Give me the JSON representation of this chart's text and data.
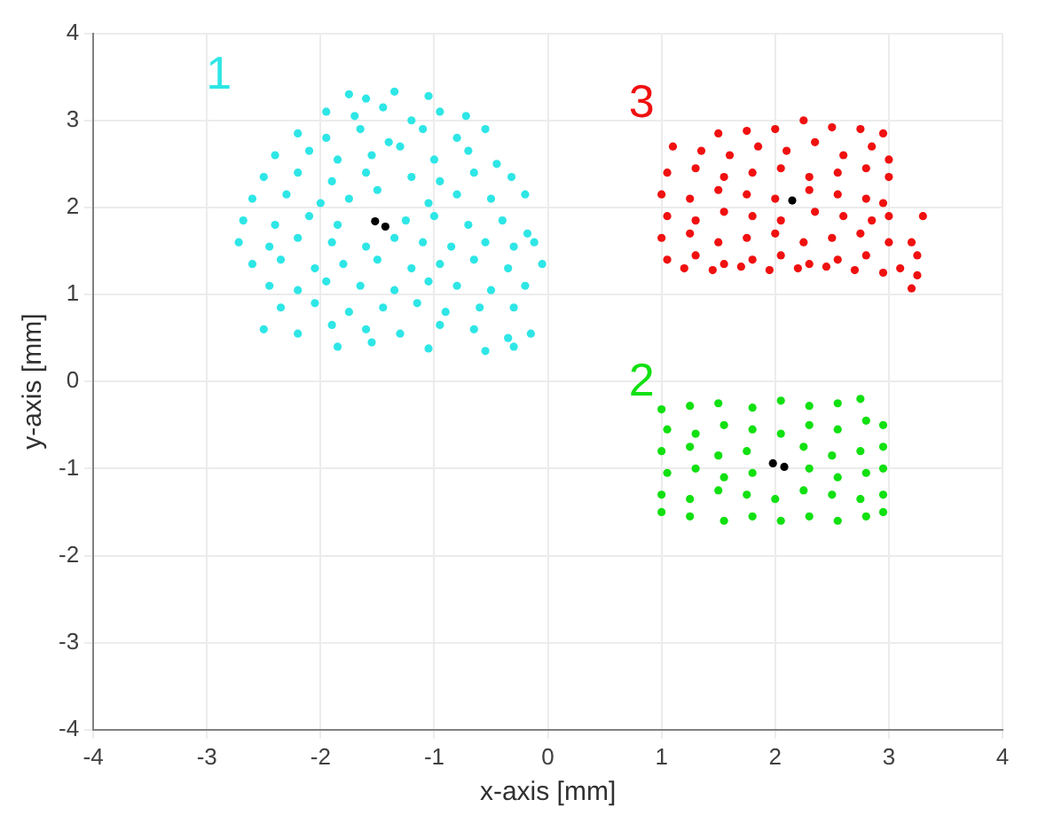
{
  "chart_data": {
    "type": "scatter",
    "xlabel": "x-axis [mm]",
    "ylabel": "y-axis [mm]",
    "xlim": [
      -4,
      4
    ],
    "ylim": [
      -4,
      4
    ],
    "xticks": [
      -4,
      -3,
      -2,
      -1,
      0,
      1,
      2,
      3,
      4
    ],
    "yticks": [
      -4,
      -3,
      -2,
      -1,
      0,
      1,
      2,
      3,
      4
    ],
    "grid": true,
    "legend": false,
    "marker": "circle",
    "series": [
      {
        "name": "1",
        "color": "#2ee6e6",
        "x": [
          -1.75,
          -1.6,
          -1.35,
          -1.05,
          -1.95,
          -1.7,
          -1.45,
          -1.2,
          -0.95,
          -0.72,
          -2.2,
          -1.95,
          -1.65,
          -1.4,
          -1.1,
          -0.8,
          -0.55,
          -2.4,
          -2.1,
          -1.85,
          -1.55,
          -1.3,
          -1.0,
          -0.7,
          -0.45,
          -2.5,
          -2.2,
          -1.9,
          -1.6,
          -1.2,
          -0.95,
          -0.65,
          -0.32,
          -2.6,
          -2.3,
          -2.0,
          -1.75,
          -1.5,
          -1.05,
          -0.8,
          -0.5,
          -0.2,
          -2.68,
          -2.4,
          -2.1,
          -1.85,
          -1.25,
          -1.0,
          -0.7,
          -0.4,
          -0.18,
          -2.72,
          -2.45,
          -2.2,
          -1.9,
          -1.6,
          -1.35,
          -1.1,
          -0.85,
          -0.55,
          -0.3,
          -0.12,
          -2.6,
          -2.35,
          -2.05,
          -1.8,
          -1.5,
          -1.2,
          -0.95,
          -0.65,
          -0.35,
          -0.05,
          -2.45,
          -2.2,
          -1.95,
          -1.65,
          -1.35,
          -1.05,
          -0.8,
          -0.5,
          -0.2,
          -2.35,
          -2.05,
          -1.75,
          -1.45,
          -1.15,
          -0.9,
          -0.6,
          -0.3,
          -2.5,
          -2.2,
          -1.9,
          -1.6,
          -1.3,
          -0.95,
          -0.65,
          -0.35,
          -0.15,
          -1.85,
          -1.55,
          -1.05,
          -0.55,
          -0.3
        ],
        "values": [
          3.3,
          3.25,
          3.33,
          3.28,
          3.1,
          3.05,
          3.15,
          3.0,
          3.1,
          3.05,
          2.85,
          2.8,
          2.9,
          2.75,
          2.9,
          2.8,
          2.9,
          2.6,
          2.65,
          2.55,
          2.6,
          2.7,
          2.55,
          2.65,
          2.5,
          2.35,
          2.4,
          2.3,
          2.4,
          2.35,
          2.3,
          2.4,
          2.35,
          2.1,
          2.15,
          2.05,
          2.1,
          2.2,
          2.05,
          2.15,
          2.1,
          2.15,
          1.85,
          1.8,
          1.9,
          1.8,
          1.85,
          1.9,
          1.8,
          1.85,
          1.7,
          1.6,
          1.55,
          1.65,
          1.6,
          1.55,
          1.65,
          1.6,
          1.55,
          1.6,
          1.55,
          1.6,
          1.35,
          1.4,
          1.3,
          1.35,
          1.4,
          1.3,
          1.35,
          1.4,
          1.3,
          1.35,
          1.1,
          1.05,
          1.15,
          1.1,
          1.05,
          1.15,
          1.1,
          1.05,
          1.1,
          0.85,
          0.9,
          0.8,
          0.85,
          0.9,
          0.8,
          0.85,
          0.85,
          0.6,
          0.55,
          0.65,
          0.6,
          0.55,
          0.65,
          0.6,
          0.5,
          0.55,
          0.4,
          0.45,
          0.38,
          0.35,
          0.4
        ]
      },
      {
        "name": "2",
        "color": "#11e011",
        "x": [
          1.0,
          1.25,
          1.5,
          1.8,
          2.05,
          2.3,
          2.55,
          2.75,
          1.05,
          1.3,
          1.55,
          1.8,
          2.05,
          2.3,
          2.55,
          2.8,
          2.95,
          1.0,
          1.25,
          1.5,
          1.75,
          2.25,
          2.5,
          2.75,
          2.95,
          1.05,
          1.3,
          1.55,
          1.8,
          2.3,
          2.55,
          2.8,
          2.95,
          1.0,
          1.25,
          1.5,
          1.75,
          2.0,
          2.25,
          2.5,
          2.75,
          2.95,
          1.0,
          1.25,
          1.55,
          1.8,
          2.05,
          2.3,
          2.55,
          2.8,
          2.95
        ],
        "values": [
          -0.32,
          -0.28,
          -0.25,
          -0.3,
          -0.22,
          -0.28,
          -0.25,
          -0.2,
          -0.55,
          -0.6,
          -0.5,
          -0.55,
          -0.6,
          -0.5,
          -0.55,
          -0.45,
          -0.5,
          -0.8,
          -0.75,
          -0.85,
          -0.8,
          -0.75,
          -0.85,
          -0.8,
          -0.75,
          -1.05,
          -1.0,
          -1.1,
          -1.05,
          -1.0,
          -1.1,
          -1.05,
          -1.0,
          -1.3,
          -1.35,
          -1.25,
          -1.3,
          -1.35,
          -1.25,
          -1.3,
          -1.35,
          -1.3,
          -1.5,
          -1.55,
          -1.6,
          -1.55,
          -1.6,
          -1.55,
          -1.6,
          -1.55,
          -1.5
        ]
      },
      {
        "name": "3",
        "color": "#f01010",
        "x": [
          1.5,
          1.75,
          2.0,
          2.25,
          2.5,
          2.75,
          2.95,
          1.1,
          1.35,
          1.6,
          1.85,
          2.1,
          2.35,
          2.6,
          2.85,
          3.0,
          1.05,
          1.3,
          1.55,
          1.8,
          2.05,
          2.3,
          2.55,
          2.8,
          3.0,
          1.0,
          1.25,
          1.5,
          1.75,
          2.0,
          2.3,
          2.55,
          2.8,
          2.95,
          1.05,
          1.3,
          1.55,
          1.8,
          2.05,
          2.35,
          2.6,
          2.85,
          3.0,
          3.3,
          1.0,
          1.25,
          1.5,
          1.75,
          2.0,
          2.25,
          2.5,
          2.75,
          3.0,
          3.2,
          1.05,
          1.3,
          1.55,
          1.8,
          2.05,
          2.3,
          2.55,
          2.8,
          3.1,
          3.25,
          1.2,
          1.45,
          1.7,
          1.95,
          2.2,
          2.45,
          2.7,
          2.95,
          3.25,
          3.2
        ],
        "values": [
          2.85,
          2.88,
          2.9,
          3.0,
          2.92,
          2.9,
          2.85,
          2.7,
          2.65,
          2.6,
          2.7,
          2.65,
          2.75,
          2.6,
          2.7,
          2.55,
          2.4,
          2.45,
          2.35,
          2.4,
          2.45,
          2.35,
          2.4,
          2.45,
          2.35,
          2.15,
          2.1,
          2.2,
          2.15,
          2.1,
          2.2,
          2.15,
          2.1,
          2.05,
          1.9,
          1.85,
          1.95,
          1.9,
          1.85,
          1.95,
          1.9,
          1.85,
          1.9,
          1.9,
          1.65,
          1.7,
          1.6,
          1.65,
          1.7,
          1.6,
          1.65,
          1.7,
          1.6,
          1.6,
          1.4,
          1.45,
          1.35,
          1.4,
          1.45,
          1.35,
          1.4,
          1.45,
          1.3,
          1.45,
          1.3,
          1.28,
          1.32,
          1.28,
          1.3,
          1.32,
          1.28,
          1.25,
          1.22,
          1.07
        ]
      },
      {
        "color": "#000000",
        "x": [
          -1.52,
          -1.43,
          1.98,
          2.08,
          2.15
        ],
        "values": [
          1.84,
          1.78,
          -0.94,
          -0.98,
          2.08
        ]
      }
    ]
  }
}
